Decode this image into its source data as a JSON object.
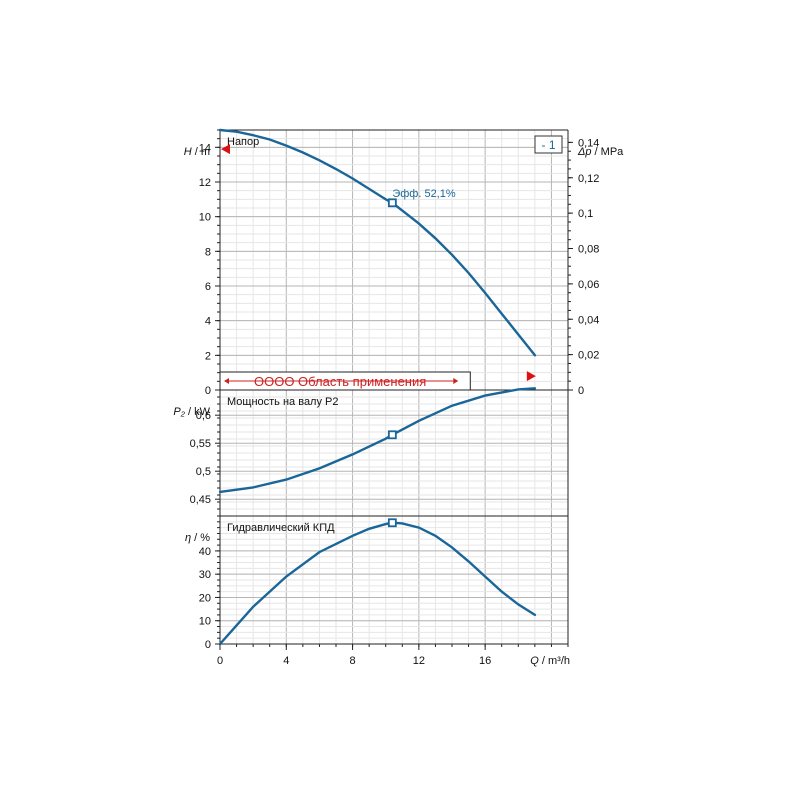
{
  "chart_data": [
    {
      "type": "line",
      "panel": "head",
      "title": "Напор",
      "ylabel_symbol": "H",
      "ylabel_unit": "m",
      "y2label_symbol": "Δp",
      "y2label_unit": "MPa",
      "ylim": [
        0,
        15
      ],
      "yticks": [
        0,
        2,
        4,
        6,
        8,
        10,
        12,
        14
      ],
      "ytick_labels": [
        "0",
        "2",
        "4",
        "6",
        "8",
        "10",
        "12",
        "14"
      ],
      "y2lim": [
        0,
        0.147
      ],
      "y2ticks": [
        0,
        0.02,
        0.04,
        0.06,
        0.08,
        0.1,
        0.12,
        0.14
      ],
      "y2tick_labels": [
        "0",
        "0,02",
        "0,04",
        "0,06",
        "0,08",
        "0,1",
        "0,12",
        "0,14"
      ],
      "curve_label": "- 1",
      "series": [
        {
          "x": [
            0,
            1,
            2,
            3,
            4,
            5,
            6,
            7,
            8,
            9,
            10,
            10.4,
            11,
            12,
            13,
            14,
            15,
            16,
            17,
            18,
            19
          ],
          "y": [
            15.0,
            14.9,
            14.7,
            14.45,
            14.1,
            13.7,
            13.25,
            12.75,
            12.2,
            11.6,
            11.0,
            10.8,
            10.35,
            9.6,
            8.75,
            7.8,
            6.75,
            5.6,
            4.4,
            3.2,
            2.0
          ]
        }
      ],
      "bep": {
        "x": 10.4,
        "y": 10.8,
        "label": "Эфф.  52,1%"
      },
      "range_band_label": "OOOO Область применения",
      "range_band_x": [
        0,
        14.5
      ],
      "marker_left_y": 13.9,
      "marker_right_y": 0.8
    },
    {
      "type": "line",
      "panel": "power",
      "title": "Мощность на валу P2",
      "ylabel_symbol": "P₂",
      "ylabel_unit": "kW",
      "ylim": [
        0.42,
        0.645
      ],
      "yticks": [
        0.45,
        0.5,
        0.55,
        0.6
      ],
      "ytick_labels": [
        "0,45",
        "0,5",
        "0,55",
        "0,6"
      ],
      "series": [
        {
          "x": [
            0,
            2,
            4,
            6,
            8,
            10,
            10.4,
            12,
            14,
            16,
            18,
            19
          ],
          "y": [
            0.463,
            0.471,
            0.485,
            0.505,
            0.53,
            0.558,
            0.565,
            0.59,
            0.617,
            0.635,
            0.646,
            0.648
          ]
        }
      ],
      "bep": {
        "x": 10.4,
        "y": 0.565
      }
    },
    {
      "type": "line",
      "panel": "efficiency",
      "title": "Гидравлический КПД",
      "ylabel_symbol": "η",
      "ylabel_unit": "%",
      "ylim": [
        0,
        55
      ],
      "yticks": [
        0,
        10,
        20,
        30,
        40
      ],
      "ytick_labels": [
        "0",
        "10",
        "20",
        "30",
        "40"
      ],
      "xlim": [
        0,
        21
      ],
      "xticks": [
        0,
        4,
        8,
        12,
        16
      ],
      "xtick_labels": [
        "0",
        "4",
        "8",
        "12",
        "16"
      ],
      "xlabel_symbol": "Q",
      "xlabel_unit": "m³/h",
      "series": [
        {
          "x": [
            0,
            2,
            4,
            6,
            8,
            9,
            10,
            10.4,
            11,
            12,
            13,
            14,
            15,
            16,
            17,
            18,
            19
          ],
          "y": [
            0,
            16,
            29,
            39.5,
            46.5,
            49.5,
            51.5,
            52.1,
            51.8,
            50,
            46.5,
            41.5,
            35.5,
            29,
            22.5,
            17,
            12.5
          ]
        }
      ],
      "bep": {
        "x": 10.4,
        "y": 52.1
      }
    }
  ],
  "colors": {
    "curve": "#1a6699",
    "marker": "#dd1111",
    "band": "#cc2222",
    "grid_major": "#b5b5b5",
    "grid_minor": "#e6e6e6"
  }
}
